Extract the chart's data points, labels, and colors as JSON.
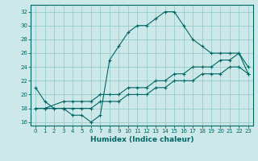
{
  "xlabel": "Humidex (Indice chaleur)",
  "ylabel": "",
  "background_color": "#cce8e8",
  "grid_color": "#99cccc",
  "line_color": "#006666",
  "xlim": [
    -0.5,
    23.5
  ],
  "ylim": [
    15.5,
    33.0
  ],
  "xticks": [
    0,
    1,
    2,
    3,
    4,
    5,
    6,
    7,
    8,
    9,
    10,
    11,
    12,
    13,
    14,
    15,
    16,
    17,
    18,
    19,
    20,
    21,
    22,
    23
  ],
  "yticks": [
    16,
    18,
    20,
    22,
    24,
    26,
    28,
    30,
    32
  ],
  "line1_x": [
    0,
    1,
    2,
    3,
    4,
    5,
    6,
    7,
    8,
    9,
    10,
    11,
    12,
    13,
    14,
    15,
    16,
    17,
    18,
    19,
    20,
    21,
    22,
    23
  ],
  "line1_y": [
    21,
    19,
    18,
    18,
    17,
    17,
    16,
    17,
    25,
    27,
    29,
    30,
    30,
    31,
    32,
    32,
    30,
    28,
    27,
    26,
    26,
    26,
    26,
    24
  ],
  "line2_x": [
    0,
    1,
    3,
    4,
    5,
    6,
    7,
    8,
    9,
    10,
    11,
    12,
    13,
    14,
    15,
    16,
    17,
    18,
    19,
    20,
    21,
    22,
    23
  ],
  "line2_y": [
    18,
    18,
    19,
    19,
    19,
    19,
    20,
    20,
    20,
    21,
    21,
    21,
    22,
    22,
    23,
    23,
    24,
    24,
    24,
    25,
    25,
    26,
    23
  ],
  "line3_x": [
    0,
    1,
    2,
    3,
    4,
    5,
    6,
    7,
    8,
    9,
    10,
    11,
    12,
    13,
    14,
    15,
    16,
    17,
    18,
    19,
    20,
    21,
    22,
    23
  ],
  "line3_y": [
    18,
    18,
    18,
    18,
    18,
    18,
    18,
    19,
    19,
    19,
    20,
    20,
    20,
    21,
    21,
    22,
    22,
    22,
    23,
    23,
    23,
    24,
    24,
    23
  ]
}
